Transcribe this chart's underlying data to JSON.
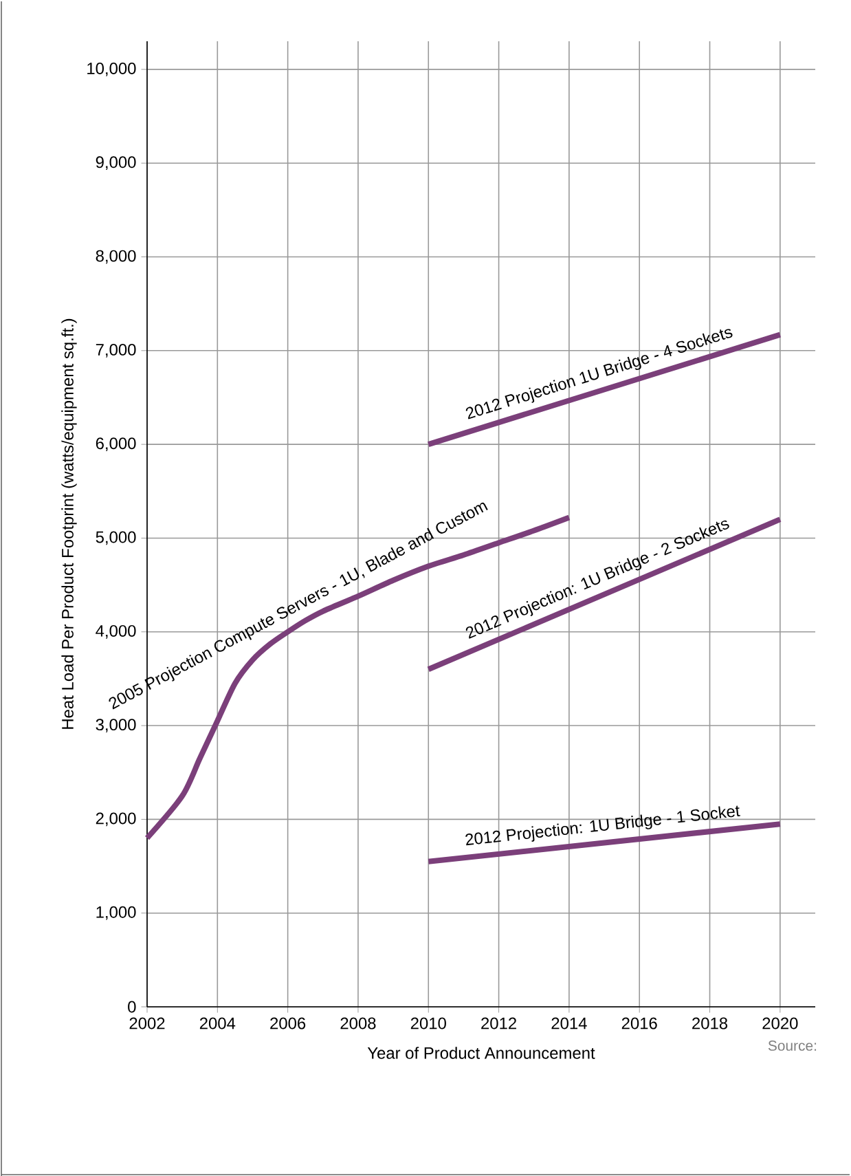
{
  "chart_data": {
    "type": "line",
    "xlabel": "Year of Product Announcement",
    "ylabel": "Heat Load Per Product Footprint (watts/equipment sq.ft.)",
    "xlim": [
      2002,
      2021
    ],
    "ylim": [
      0,
      10300
    ],
    "xticks": [
      2002,
      2004,
      2006,
      2008,
      2010,
      2012,
      2014,
      2016,
      2018,
      2020
    ],
    "yticks": [
      {
        "value": 0,
        "label": "0"
      },
      {
        "value": 1000,
        "label": "1,000"
      },
      {
        "value": 2000,
        "label": "2,000"
      },
      {
        "value": 3000,
        "label": "3,000"
      },
      {
        "value": 4000,
        "label": "4,000"
      },
      {
        "value": 5000,
        "label": "5,000"
      },
      {
        "value": 6000,
        "label": "6,000"
      },
      {
        "value": 7000,
        "label": "7,000"
      },
      {
        "value": 8000,
        "label": "8,000"
      },
      {
        "value": 9000,
        "label": "9,000"
      },
      {
        "value": 10000,
        "label": "10,000"
      }
    ],
    "grid": true,
    "legend": false,
    "marker": "none",
    "line_style": "solid",
    "annotations": [
      "Source:"
    ],
    "series": [
      {
        "name": "2005 Projection Compute Servers - 1U, Blade and Custom",
        "color": "#7b3f7a",
        "x": [
          2002,
          2003,
          2003.5,
          2004,
          2004.5,
          2005,
          2005.5,
          2006,
          2006.5,
          2007,
          2008,
          2009,
          2010,
          2011,
          2012,
          2013,
          2014
        ],
        "values": [
          1800,
          2250,
          2650,
          3050,
          3450,
          3700,
          3870,
          4000,
          4120,
          4220,
          4380,
          4550,
          4700,
          4820,
          4950,
          5080,
          5220
        ]
      },
      {
        "name": "2012 Projection 1U Bridge - 4 Sockets",
        "color": "#7b3f7a",
        "x": [
          2010,
          2020
        ],
        "values": [
          6000,
          7170
        ]
      },
      {
        "name": "2012 Projection: 1U Bridge - 2 Sockets",
        "color": "#7b3f7a",
        "x": [
          2010,
          2020
        ],
        "values": [
          3600,
          5200
        ]
      },
      {
        "name": "2012 Projection: 1U Bridge - 1 Socket",
        "color": "#7b3f7a",
        "x": [
          2010,
          2020
        ],
        "values": [
          1550,
          1950
        ]
      }
    ]
  }
}
